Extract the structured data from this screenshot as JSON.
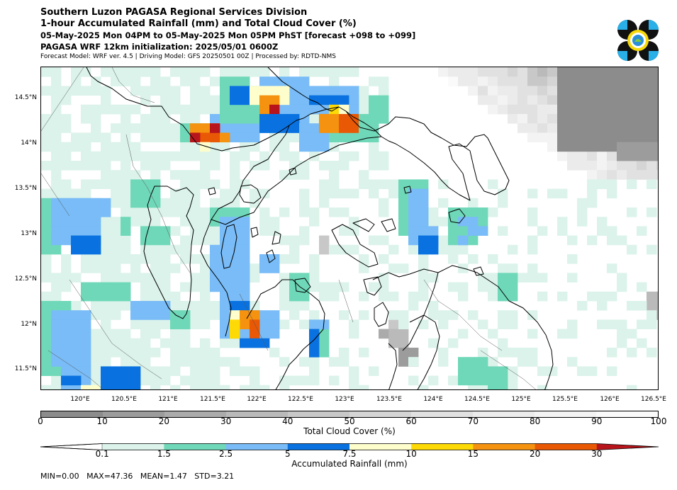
{
  "header": {
    "title": "Southern Luzon PAGASA Regional Services Division",
    "subtitle": "1-hour Accumulated Rainfall (mm) and Total Cloud Cover (%)",
    "valid_time": "05-May-2025 Mon 04PM to 05-May-2025 Mon 05PM PhST [forecast +098 to +099]",
    "init": "PAGASA WRF 12km initialization: 2025/05/01 0600Z",
    "model_info": "Forecast Model: WRF ver. 4.5 | Driving Model: GFS 20250501 00Z | Processed by: RDTD-NMS"
  },
  "map": {
    "lat_labels": [
      "14.5°N",
      "14°N",
      "13.5°N",
      "13°N",
      "12.5°N",
      "12°N",
      "11.5°N"
    ],
    "lon_labels": [
      "120°E",
      "120.5°E",
      "121°E",
      "121.5°E",
      "122°E",
      "122.5°E",
      "123°E",
      "123.5°E",
      "124°E",
      "124.5°E",
      "125°E",
      "125.5°E",
      "126°E",
      "126.5°E"
    ]
  },
  "cloud_colorbar": {
    "label": "Total Cloud Cover (%)",
    "ticks": [
      "0",
      "10",
      "20",
      "30",
      "40",
      "50",
      "60",
      "70",
      "80",
      "90",
      "100"
    ],
    "colors": [
      "#8c8c8c",
      "#9c9c9c",
      "#ababab",
      "#bababa",
      "#c8c8c8",
      "#d5d5d5",
      "#e1e1e1",
      "#ebebeb",
      "#f3f3f3",
      "#fafafa"
    ]
  },
  "rain_colorbar": {
    "label": "Accumulated Rainfall (mm)",
    "ticks": [
      "0.1",
      "1.5",
      "2.5",
      "5",
      "7.5",
      "10",
      "15",
      "20",
      "30"
    ],
    "colors": [
      "#dbf3ea",
      "#6fd8b8",
      "#79bcf7",
      "#0a72e0",
      "#fefecd",
      "#fdda06",
      "#f5920f",
      "#e95805",
      "#b8141b"
    ]
  },
  "stats": "MIN=0.00   MAX=47.36   MEAN=1.47   STD=3.21"
}
